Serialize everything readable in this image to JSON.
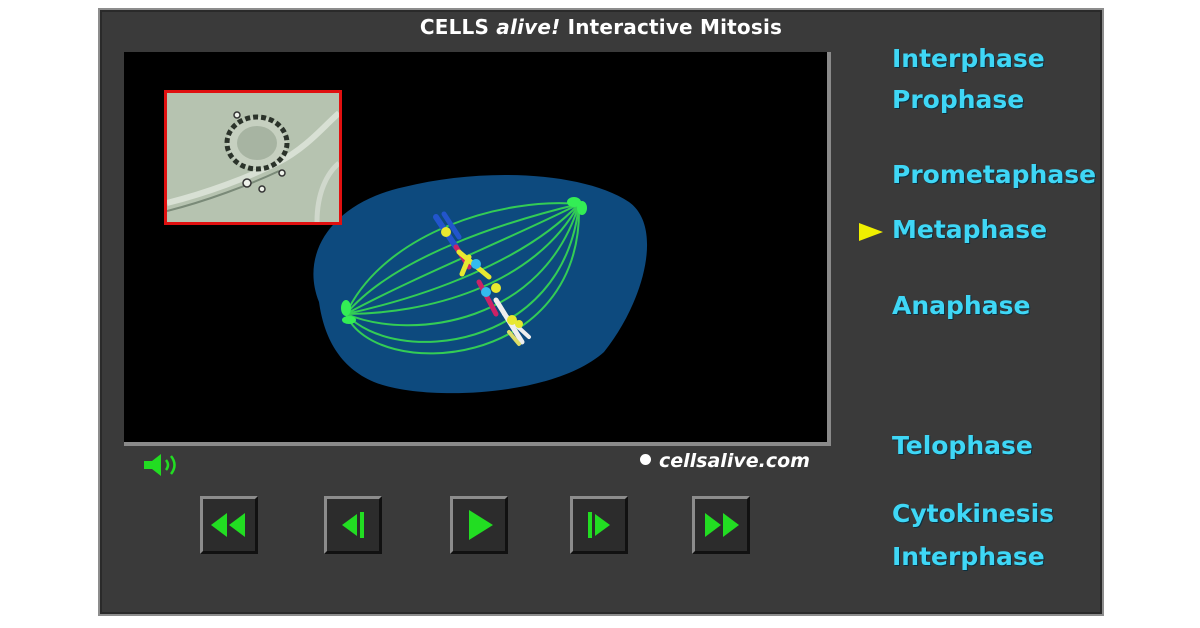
{
  "window": {
    "title_part1": "CELLS ",
    "title_part2": "alive!",
    "title_part3": " Interactive Mitosis"
  },
  "viewer": {
    "brand": "cellsalive.com",
    "current_phase": "Metaphase"
  },
  "controls": [
    {
      "name": "rewind-button",
      "icon": "double-left-arrow-icon"
    },
    {
      "name": "step-back-button",
      "icon": "step-back-icon"
    },
    {
      "name": "play-button",
      "icon": "play-icon"
    },
    {
      "name": "step-forward-button",
      "icon": "step-forward-icon"
    },
    {
      "name": "fast-forward-button",
      "icon": "double-right-arrow-icon"
    }
  ],
  "phases": [
    "Interphase",
    "Prophase",
    "Prometaphase",
    "Metaphase",
    "Anaphase",
    "Telophase",
    "Cytokinesis",
    "Interphase"
  ],
  "colors": {
    "phase_text": "#3fd7f6",
    "control_green": "#22dd22",
    "cell_blue": "#0d4a7e",
    "spindle_green": "#33cc55",
    "pointer_yellow": "#f0f000"
  }
}
